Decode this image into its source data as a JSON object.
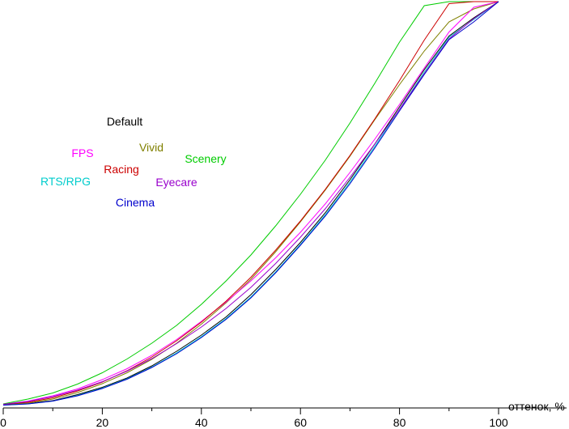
{
  "chart_data": {
    "type": "line",
    "title": "",
    "xlabel": "оттенок, %",
    "ylabel": "",
    "xlim": [
      0,
      100
    ],
    "ylim": [
      0,
      100
    ],
    "x_ticks": [
      "0",
      "20",
      "40",
      "60",
      "80",
      "100"
    ],
    "grid": false,
    "legend_position": "upper-left",
    "x": [
      0,
      5,
      10,
      15,
      20,
      25,
      30,
      35,
      40,
      45,
      50,
      55,
      60,
      65,
      70,
      75,
      80,
      85,
      90,
      95,
      100
    ],
    "series": [
      {
        "name": "Default",
        "color": "#000000",
        "values": [
          0.5,
          0.7,
          1.4,
          2.9,
          4.7,
          7.0,
          10.0,
          13.6,
          17.6,
          22.1,
          27.6,
          33.8,
          40.5,
          47.8,
          56.0,
          64.8,
          74.0,
          83.2,
          91.5,
          96.0,
          100
        ]
      },
      {
        "name": "Vivid",
        "color": "#808000",
        "values": [
          0.4,
          0.8,
          1.8,
          3.4,
          5.6,
          8.3,
          11.6,
          15.6,
          20.3,
          25.6,
          31.4,
          38.2,
          45.6,
          53.4,
          61.8,
          70.8,
          79.5,
          87.8,
          95.0,
          98.2,
          100
        ]
      },
      {
        "name": "FPS",
        "color": "#ff00ff",
        "values": [
          0.5,
          1.3,
          2.6,
          4.3,
          6.6,
          9.3,
          12.6,
          16.5,
          21.0,
          25.8,
          31.0,
          36.7,
          43.0,
          50.0,
          57.8,
          66.0,
          74.6,
          83.6,
          92.5,
          98.6,
          100
        ]
      },
      {
        "name": "Scenery",
        "color": "#00cc00",
        "values": [
          0.6,
          1.8,
          3.3,
          5.5,
          8.3,
          11.7,
          15.6,
          20.0,
          25.2,
          31.0,
          37.4,
          44.6,
          52.4,
          60.8,
          70.0,
          79.8,
          90.0,
          99.0,
          100,
          100,
          100
        ]
      },
      {
        "name": "Racing",
        "color": "#cc0000",
        "values": [
          0.5,
          1.0,
          2.1,
          3.8,
          6.0,
          8.8,
          12.2,
          16.2,
          20.8,
          26.0,
          31.9,
          38.6,
          45.8,
          53.6,
          62.0,
          71.0,
          80.5,
          90.5,
          99.5,
          100,
          100
        ]
      },
      {
        "name": "RTS/RPG",
        "color": "#00cccc",
        "values": [
          0.3,
          0.6,
          1.3,
          2.7,
          4.5,
          6.8,
          9.7,
          13.2,
          17.2,
          21.7,
          27.0,
          33.2,
          40.0,
          47.3,
          55.4,
          64.2,
          73.4,
          82.6,
          91.2,
          95.6,
          100
        ]
      },
      {
        "name": "Eyecare",
        "color": "#9900cc",
        "values": [
          0.5,
          1.2,
          2.4,
          4.0,
          6.1,
          8.7,
          11.8,
          15.5,
          19.6,
          24.2,
          29.4,
          35.3,
          41.8,
          48.8,
          56.6,
          64.8,
          73.4,
          82.2,
          90.8,
          95.8,
          100
        ]
      },
      {
        "name": "Cinema",
        "color": "#0000cc",
        "values": [
          0.3,
          0.6,
          1.3,
          2.6,
          4.4,
          6.7,
          9.6,
          13.0,
          17.0,
          21.5,
          26.8,
          33.0,
          39.8,
          47.0,
          55.0,
          63.8,
          73.0,
          82.0,
          90.6,
          95.0,
          100
        ]
      }
    ]
  }
}
